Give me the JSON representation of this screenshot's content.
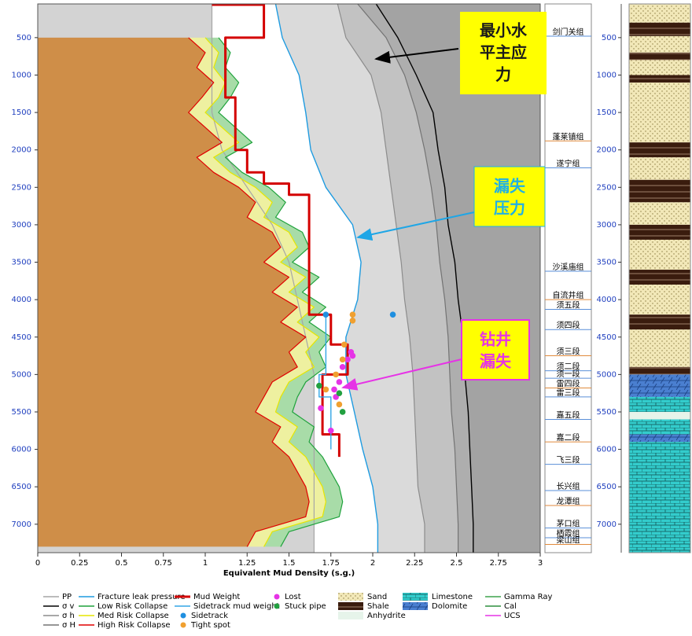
{
  "chart_data": {
    "type": "line",
    "x_label": "Equivalent Mud Density (s.g.)",
    "xlim": [
      0,
      3
    ],
    "xticks": [
      0,
      0.25,
      0.5,
      0.75,
      1,
      1.25,
      1.5,
      1.75,
      2,
      2.25,
      2.5,
      2.75,
      3
    ],
    "ylim": [
      50,
      7380
    ],
    "yticks": [
      500,
      1000,
      1500,
      2000,
      2500,
      3000,
      3500,
      4000,
      4500,
      5000,
      5500,
      6000,
      6500,
      7000
    ],
    "series": [
      {
        "name": "PP",
        "color": "#a6a6a6",
        "depth": [
          50,
          500,
          1000,
          1500,
          2000,
          2500,
          3000,
          3500,
          4000,
          4500,
          5000,
          5500,
          6000,
          6500,
          7000,
          7380
        ],
        "values": [
          1.04,
          1.04,
          1.04,
          1.04,
          1.1,
          1.25,
          1.4,
          1.5,
          1.55,
          1.6,
          1.65,
          1.65,
          1.65,
          1.65,
          1.65,
          1.65
        ]
      },
      {
        "name": "σ v",
        "color": "#000000",
        "depth": [
          50,
          500,
          1000,
          1500,
          2000,
          2500,
          3000,
          3500,
          4000,
          4500,
          5000,
          5500,
          6000,
          6500,
          7000,
          7380
        ],
        "values": [
          2.02,
          2.15,
          2.26,
          2.36,
          2.39,
          2.43,
          2.45,
          2.49,
          2.51,
          2.54,
          2.55,
          2.57,
          2.58,
          2.59,
          2.6,
          2.6
        ]
      },
      {
        "name": "σ h",
        "color": "#8c8c8c",
        "depth": [
          50,
          500,
          1000,
          1500,
          2000,
          2500,
          3000,
          3500,
          4000,
          4500,
          5000,
          5500,
          6000,
          6500,
          7000,
          7380
        ],
        "values": [
          1.79,
          1.84,
          1.99,
          2.05,
          2.08,
          2.11,
          2.14,
          2.17,
          2.19,
          2.22,
          2.24,
          2.25,
          2.26,
          2.27,
          2.31,
          2.31
        ]
      },
      {
        "name": "σ H",
        "color": "#737373",
        "depth": [
          50,
          500,
          1000,
          1500,
          2000,
          2500,
          3000,
          3500,
          4000,
          4500,
          5000,
          5500,
          6000,
          6500,
          7000,
          7380
        ],
        "values": [
          1.91,
          2.08,
          2.19,
          2.26,
          2.31,
          2.35,
          2.38,
          2.4,
          2.43,
          2.45,
          2.46,
          2.47,
          2.49,
          2.5,
          2.51,
          2.51
        ]
      },
      {
        "name": "Fracture leak pressure",
        "color": "#1e9be0",
        "depth": [
          50,
          500,
          1000,
          1500,
          2000,
          2500,
          3000,
          3500,
          4000,
          4500,
          5000,
          5500,
          6000,
          6500,
          7000,
          7380
        ],
        "values": [
          1.42,
          1.46,
          1.56,
          1.6,
          1.63,
          1.72,
          1.88,
          1.93,
          1.91,
          1.84,
          1.84,
          1.89,
          1.94,
          2.0,
          2.03,
          2.03
        ]
      },
      {
        "name": "Low Risk Collapse",
        "color": "#1fa23c",
        "depth": [
          500,
          700,
          900,
          1100,
          1300,
          1500,
          1700,
          1900,
          2100,
          2300,
          2500,
          2700,
          2900,
          3100,
          3300,
          3500,
          3700,
          3900,
          4100,
          4300,
          4500,
          4700,
          4900,
          5100,
          5300,
          5500,
          5700,
          5900,
          6100,
          6300,
          6500,
          6700,
          6900,
          7100,
          7300
        ],
        "values": [
          1.08,
          1.15,
          1.12,
          1.2,
          1.15,
          1.08,
          1.18,
          1.28,
          1.12,
          1.22,
          1.38,
          1.48,
          1.42,
          1.58,
          1.62,
          1.52,
          1.68,
          1.58,
          1.72,
          1.62,
          1.75,
          1.68,
          1.72,
          1.6,
          1.55,
          1.52,
          1.65,
          1.62,
          1.7,
          1.75,
          1.8,
          1.82,
          1.8,
          1.5,
          1.45
        ]
      },
      {
        "name": "Med Risk Collapse",
        "color": "#e6e600",
        "depth": [
          500,
          700,
          900,
          1100,
          1300,
          1500,
          1700,
          1900,
          2100,
          2300,
          2500,
          2700,
          2900,
          3100,
          3300,
          3500,
          3700,
          3900,
          4100,
          4300,
          4500,
          4700,
          4900,
          5100,
          5300,
          5500,
          5700,
          5900,
          6100,
          6300,
          6500,
          6700,
          6900,
          7100,
          7300
        ],
        "values": [
          1.0,
          1.08,
          1.05,
          1.12,
          1.08,
          1.0,
          1.1,
          1.2,
          1.05,
          1.15,
          1.3,
          1.4,
          1.35,
          1.5,
          1.55,
          1.45,
          1.6,
          1.5,
          1.65,
          1.55,
          1.68,
          1.6,
          1.65,
          1.5,
          1.45,
          1.42,
          1.55,
          1.5,
          1.6,
          1.65,
          1.7,
          1.72,
          1.7,
          1.4,
          1.35
        ]
      },
      {
        "name": "High Risk Collapse",
        "color": "#e00000",
        "depth": [
          500,
          700,
          900,
          1100,
          1300,
          1500,
          1700,
          1900,
          2100,
          2300,
          2500,
          2700,
          2900,
          3100,
          3300,
          3500,
          3700,
          3900,
          4100,
          4300,
          4500,
          4700,
          4900,
          5100,
          5300,
          5500,
          5700,
          5900,
          6100,
          6300,
          6500,
          6700,
          6900,
          7100,
          7300
        ],
        "values": [
          0.9,
          1.0,
          0.95,
          1.05,
          0.98,
          0.9,
          1.0,
          1.1,
          0.95,
          1.05,
          1.2,
          1.3,
          1.25,
          1.4,
          1.45,
          1.35,
          1.5,
          1.4,
          1.55,
          1.45,
          1.6,
          1.5,
          1.55,
          1.4,
          1.35,
          1.3,
          1.45,
          1.4,
          1.5,
          1.55,
          1.6,
          1.62,
          1.6,
          1.3,
          1.25
        ]
      },
      {
        "name": "Mud Weight",
        "color": "#d40000",
        "depth": [
          60,
          60,
          500,
          500,
          1300,
          1300,
          2000,
          2000,
          2300,
          2300,
          2450,
          2450,
          2600,
          2600,
          4200,
          4200,
          4600,
          4600,
          5000,
          5000,
          5800,
          5800,
          6100
        ],
        "values": [
          1.04,
          1.35,
          1.35,
          1.12,
          1.12,
          1.18,
          1.18,
          1.25,
          1.25,
          1.35,
          1.35,
          1.5,
          1.5,
          1.62,
          1.62,
          1.75,
          1.75,
          1.85,
          1.85,
          1.7,
          1.7,
          1.8,
          1.8
        ]
      },
      {
        "name": "Sidetrack mud weight",
        "color": "#33a6e6",
        "depth": [
          4200,
          5000,
          5000,
          5300,
          5300,
          6000
        ],
        "values": [
          1.72,
          1.72,
          1.68,
          1.68,
          1.75,
          1.75
        ]
      }
    ],
    "events": [
      {
        "name": "Lost",
        "color": "#e633e6",
        "depth": [
          4700,
          4750,
          4800,
          4900,
          5100,
          5200,
          5300,
          5450,
          5750
        ],
        "values": [
          1.87,
          1.88,
          1.85,
          1.82,
          1.8,
          1.77,
          1.78,
          1.69,
          1.75
        ]
      },
      {
        "name": "Stuck pipe",
        "color": "#22a040",
        "depth": [
          5150,
          5250,
          5500
        ],
        "values": [
          1.68,
          1.8,
          1.82
        ]
      },
      {
        "name": "Sidetrack",
        "color": "#1f8fe0",
        "depth": [
          4200,
          4200
        ],
        "values": [
          1.72,
          2.12
        ]
      },
      {
        "name": "Tight spot",
        "color": "#f0a030",
        "depth": [
          4200,
          4280,
          4600,
          4800,
          5000,
          5200,
          5400
        ],
        "values": [
          1.88,
          1.88,
          1.83,
          1.82,
          1.78,
          1.72,
          1.8
        ]
      }
    ],
    "legend_extra": [
      {
        "name": "Gamma Ray",
        "color": "#3fa34d"
      },
      {
        "name": "Cal",
        "color": "#2f8f3f"
      },
      {
        "name": "UCS",
        "color": "#e633e6"
      }
    ],
    "formations": [
      {
        "name": "剑门关组",
        "depth": 480
      },
      {
        "name": "蓬莱镇组",
        "depth": 1880
      },
      {
        "name": "遂宁组",
        "depth": 2240
      },
      {
        "name": "沙溪庙组",
        "depth": 3620
      },
      {
        "name": "自流井组",
        "depth": 4000
      },
      {
        "name": "须五段",
        "depth": 4130
      },
      {
        "name": "须四段",
        "depth": 4400
      },
      {
        "name": "须三段",
        "depth": 4750
      },
      {
        "name": "须二段",
        "depth": 4950
      },
      {
        "name": "须一段",
        "depth": 5050
      },
      {
        "name": "雷四段",
        "depth": 5180
      },
      {
        "name": "雷三段",
        "depth": 5300
      },
      {
        "name": "嘉五段",
        "depth": 5600
      },
      {
        "name": "嘉二段",
        "depth": 5900
      },
      {
        "name": "飞三段",
        "depth": 6200
      },
      {
        "name": "长兴组",
        "depth": 6550
      },
      {
        "name": "龙潭组",
        "depth": 6750
      },
      {
        "name": "茅口组",
        "depth": 7050
      },
      {
        "name": "栖霞组",
        "depth": 7180
      },
      {
        "name": "梁山组",
        "depth": 7270
      }
    ],
    "lithology_types": [
      {
        "name": "Sand"
      },
      {
        "name": "Shale"
      },
      {
        "name": "Anhydrite"
      },
      {
        "name": "Limestone"
      },
      {
        "name": "Dolomite"
      }
    ],
    "lithology": [
      {
        "top": 50,
        "bottom": 300,
        "rock": "Sand"
      },
      {
        "top": 300,
        "bottom": 480,
        "rock": "Shale"
      },
      {
        "top": 480,
        "bottom": 700,
        "rock": "Sand"
      },
      {
        "top": 700,
        "bottom": 800,
        "rock": "Shale"
      },
      {
        "top": 800,
        "bottom": 1000,
        "rock": "Sand"
      },
      {
        "top": 1000,
        "bottom": 1100,
        "rock": "Shale"
      },
      {
        "top": 1100,
        "bottom": 1900,
        "rock": "Sand"
      },
      {
        "top": 1900,
        "bottom": 2100,
        "rock": "Shale"
      },
      {
        "top": 2100,
        "bottom": 2400,
        "rock": "Sand"
      },
      {
        "top": 2400,
        "bottom": 2700,
        "rock": "Shale"
      },
      {
        "top": 2700,
        "bottom": 3000,
        "rock": "Sand"
      },
      {
        "top": 3000,
        "bottom": 3200,
        "rock": "Shale"
      },
      {
        "top": 3200,
        "bottom": 3600,
        "rock": "Sand"
      },
      {
        "top": 3600,
        "bottom": 3800,
        "rock": "Shale"
      },
      {
        "top": 3800,
        "bottom": 4200,
        "rock": "Sand"
      },
      {
        "top": 4200,
        "bottom": 4400,
        "rock": "Shale"
      },
      {
        "top": 4400,
        "bottom": 4900,
        "rock": "Sand"
      },
      {
        "top": 4900,
        "bottom": 5000,
        "rock": "Shale"
      },
      {
        "top": 5000,
        "bottom": 5300,
        "rock": "Dolomite"
      },
      {
        "top": 5300,
        "bottom": 5500,
        "rock": "Limestone"
      },
      {
        "top": 5500,
        "bottom": 5600,
        "rock": "Anhydrite"
      },
      {
        "top": 5600,
        "bottom": 5800,
        "rock": "Limestone"
      },
      {
        "top": 5800,
        "bottom": 5900,
        "rock": "Dolomite"
      },
      {
        "top": 5900,
        "bottom": 7380,
        "rock": "Limestone"
      }
    ],
    "annotations": [
      {
        "lines": [
          "最小水",
          "平主应",
          "力"
        ],
        "color": "#1a1a1a"
      },
      {
        "lines": [
          "漏失",
          "压力"
        ],
        "color": "#1fb0e6"
      },
      {
        "lines": [
          "钻井",
          "漏失"
        ],
        "color": "#e633e6"
      }
    ]
  }
}
